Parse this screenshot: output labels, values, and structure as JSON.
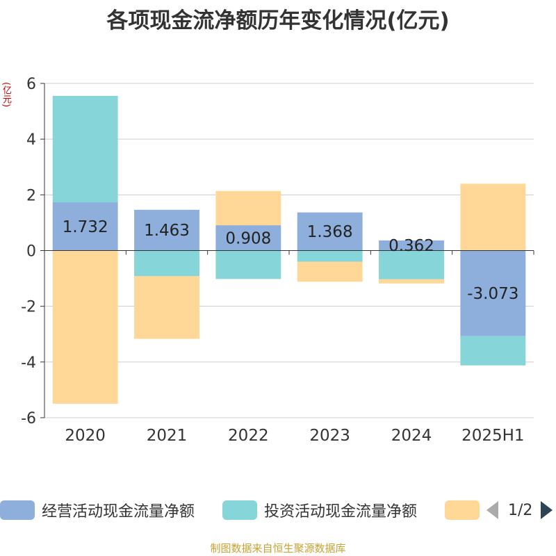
{
  "chart_data": {
    "type": "bar",
    "stacked": true,
    "title": "各项现金流净额历年变化情况(亿元)",
    "ylabel": "(亿元)",
    "ylim": [
      -6,
      6
    ],
    "yticks": [
      6,
      4,
      2,
      0,
      -2,
      -4,
      -6
    ],
    "grid": true,
    "legend_position": "bottom",
    "categories": [
      "2020",
      "2021",
      "2022",
      "2023",
      "2024",
      "2025H1"
    ],
    "series": [
      {
        "name": "经营活动现金流量净额",
        "color": "#8eaedb",
        "labels_shown": true,
        "values": [
          1.732,
          1.463,
          0.908,
          1.368,
          0.362,
          -3.073
        ]
      },
      {
        "name": "投资活动现金流量净额",
        "color": "#86d5d8",
        "labels_shown": false,
        "values": [
          3.82,
          -0.92,
          -1.02,
          -0.4,
          -1.03,
          -1.05
        ]
      },
      {
        "name": "",
        "color": "#ffd898",
        "labels_shown": false,
        "values": [
          -5.5,
          -2.25,
          1.23,
          -0.72,
          -0.15,
          2.4
        ]
      }
    ]
  },
  "legend": {
    "items": [
      {
        "label": "经营活动现金流量净额",
        "color": "#8eaedb"
      },
      {
        "label": "投资活动现金流量净额",
        "color": "#86d5d8"
      },
      {
        "label": "",
        "color": "#ffd898"
      }
    ],
    "page": "1/2"
  },
  "source": "制图数据来自恒生聚源数据库"
}
